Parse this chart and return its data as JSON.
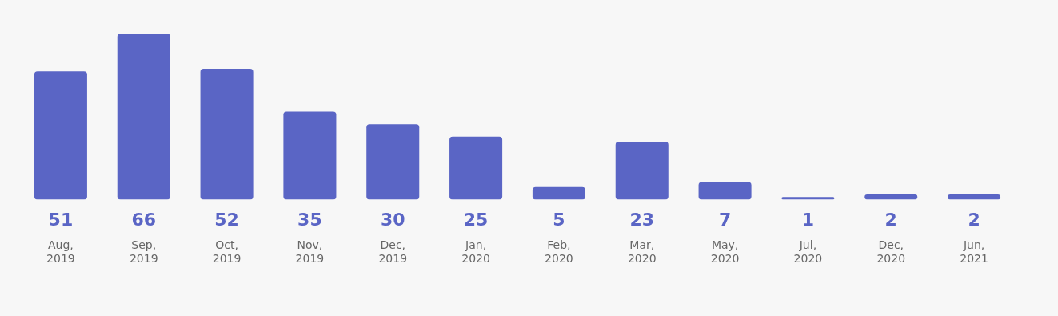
{
  "chart_data": {
    "type": "bar",
    "categories": [
      "Aug, 2019",
      "Sep, 2019",
      "Oct, 2019",
      "Nov, 2019",
      "Dec, 2019",
      "Jan, 2020",
      "Feb, 2020",
      "Mar, 2020",
      "May, 2020",
      "Jul, 2020",
      "Dec, 2020",
      "Jun, 2021"
    ],
    "values": [
      51,
      66,
      52,
      35,
      30,
      25,
      5,
      23,
      7,
      1,
      2,
      2
    ],
    "color": "#5a65c5",
    "ylim": [
      0,
      66
    ],
    "data_labels": true,
    "grid": false,
    "legend": false
  }
}
